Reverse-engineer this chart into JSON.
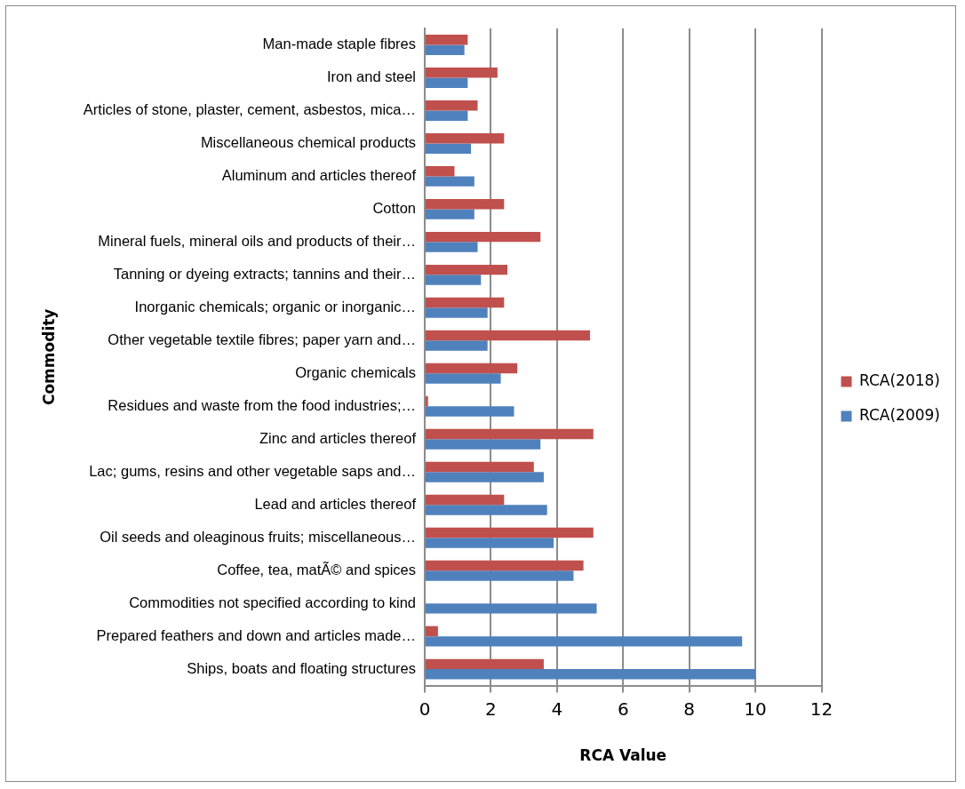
{
  "chart_data": {
    "type": "bar",
    "orientation": "horizontal",
    "xlabel": "RCA Value",
    "ylabel": "Commodity",
    "categories": [
      "Man-made staple fibres",
      "Iron and steel",
      "Articles of stone, plaster, cement, asbestos, mica…",
      "Miscellaneous chemical products",
      "Aluminum and articles thereof",
      "Cotton",
      "Mineral fuels, mineral oils and products of their…",
      "Tanning or dyeing extracts; tannins and their…",
      "Inorganic chemicals; organic or inorganic…",
      "Other vegetable textile fibres; paper yarn and…",
      "Organic chemicals",
      "Residues and waste from the food industries;…",
      "Zinc and articles thereof",
      "Lac; gums, resins and other vegetable saps and…",
      "Lead and articles thereof",
      "Oil seeds and oleaginous fruits; miscellaneous…",
      "Coffee, tea, matÃ© and spices",
      "Commodities not specified according to kind",
      "Prepared feathers and down and articles made…",
      "Ships, boats and floating structures"
    ],
    "series": [
      {
        "name": "RCA(2018)",
        "color": "#c0504d",
        "values": [
          1.3,
          2.2,
          1.6,
          2.4,
          0.9,
          2.4,
          3.5,
          2.5,
          2.4,
          5.0,
          2.8,
          0.1,
          5.1,
          3.3,
          2.4,
          5.1,
          4.8,
          0.0,
          0.4,
          3.6
        ]
      },
      {
        "name": "RCA(2009)",
        "color": "#4f81bd",
        "values": [
          1.2,
          1.3,
          1.3,
          1.4,
          1.5,
          1.5,
          1.6,
          1.7,
          1.9,
          1.9,
          2.3,
          2.7,
          3.5,
          3.6,
          3.7,
          3.9,
          4.5,
          5.2,
          9.6,
          10.0
        ]
      }
    ],
    "xlim": [
      0,
      12
    ],
    "xticks": [
      0,
      2,
      4,
      6,
      8,
      10,
      12
    ],
    "grid": "x",
    "legend": "right"
  }
}
